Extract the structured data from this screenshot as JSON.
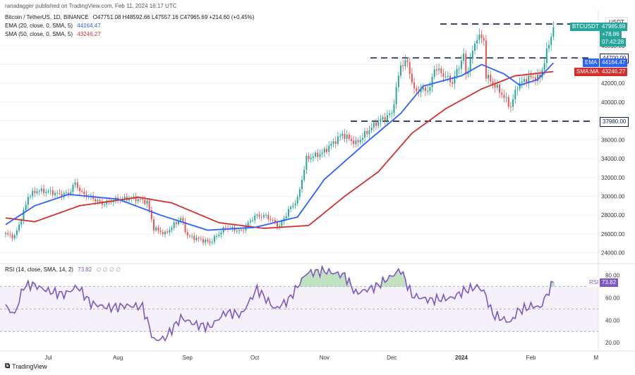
{
  "header": {
    "publisher_line": "ranadagger published on TradingView.com, Feb 11, 2024 16:17 UTC"
  },
  "legend": {
    "symbol": "Bitcoin / TetherUS, 1D, BINANCE",
    "ohlc": "O47751.08 H48592.66 L47557.16 C47965.69 +214.60 (+0.45%)",
    "ema_label": "EMA (20, close, 0, SMA, 5)",
    "ema_value": "44164.47",
    "sma_label": "SMA (50, close, 0, SMA, 5)",
    "sma_value": "43246.27"
  },
  "rsi_legend": {
    "label": "RSI (14, close, SMA, 14, 2)",
    "value": "73.82",
    "extra": "∅ ∅ ∅ ∅"
  },
  "currency": "USDT",
  "price_tags": {
    "symbol": "BTCUSDT",
    "price": "47965.69",
    "change": "+78.86",
    "timer": "07:42:28",
    "ema_tag": "EMA",
    "ema_value": "44164.47",
    "sma_tag": "SMA:MA",
    "sma_value": "43246.27",
    "rsi_tag": "RSI",
    "rsi_value": "73.82"
  },
  "levels": [
    {
      "label": "44700.00"
    },
    {
      "label": "37980.00"
    }
  ],
  "footer": {
    "brand": "TradingView"
  },
  "colors": {
    "up": "#26a69a",
    "down": "#ef5350",
    "ema": "#2962ff",
    "sma": "#d32f2f",
    "rsi": "#7e57c2",
    "level": "#0d1b4c"
  },
  "chart_data": [
    {
      "type": "candlestick",
      "title": "Bitcoin / TetherUS, 1D, BINANCE",
      "x_ticks": [
        "Jul",
        "Aug",
        "Sep",
        "Oct",
        "Nov",
        "Dec",
        "2024",
        "Feb",
        "M"
      ],
      "y_ticks": [
        "24000.00",
        "26000.00",
        "28000.00",
        "30000.00",
        "32000.00",
        "34000.00",
        "36000.00",
        "38000.00",
        "40000.00",
        "42000.00",
        "44000.00",
        "46000.00"
      ],
      "ylim": [
        23000,
        49500
      ],
      "horizontal_levels": [
        44700,
        37980,
        48300
      ],
      "price_anchors": [
        [
          "2023-06-12",
          26000
        ],
        [
          "2023-06-16",
          25700
        ],
        [
          "2023-06-20",
          28300
        ],
        [
          "2023-06-22",
          30000
        ],
        [
          "2023-06-26",
          30600
        ],
        [
          "2023-07-01",
          30500
        ],
        [
          "2023-07-06",
          30200
        ],
        [
          "2023-07-10",
          30300
        ],
        [
          "2023-07-13",
          31400
        ],
        [
          "2023-07-16",
          30300
        ],
        [
          "2023-07-20",
          29900
        ],
        [
          "2023-07-25",
          29200
        ],
        [
          "2023-08-01",
          29700
        ],
        [
          "2023-08-08",
          29800
        ],
        [
          "2023-08-14",
          29400
        ],
        [
          "2023-08-17",
          26600
        ],
        [
          "2023-08-22",
          26000
        ],
        [
          "2023-08-29",
          27700
        ],
        [
          "2023-09-01",
          25800
        ],
        [
          "2023-09-11",
          25100
        ],
        [
          "2023-09-18",
          26700
        ],
        [
          "2023-09-25",
          26300
        ],
        [
          "2023-10-01",
          27900
        ],
        [
          "2023-10-06",
          27900
        ],
        [
          "2023-10-12",
          26800
        ],
        [
          "2023-10-16",
          28500
        ],
        [
          "2023-10-20",
          29700
        ],
        [
          "2023-10-24",
          34000
        ],
        [
          "2023-10-31",
          34600
        ],
        [
          "2023-11-09",
          36600
        ],
        [
          "2023-11-15",
          35600
        ],
        [
          "2023-11-24",
          37800
        ],
        [
          "2023-12-01",
          38800
        ],
        [
          "2023-12-05",
          44000
        ],
        [
          "2023-12-08",
          44200
        ],
        [
          "2023-12-11",
          41200
        ],
        [
          "2023-12-18",
          41400
        ],
        [
          "2023-12-20",
          43700
        ],
        [
          "2023-12-28",
          42100
        ],
        [
          "2024-01-02",
          45000
        ],
        [
          "2024-01-03",
          42800
        ],
        [
          "2024-01-08",
          47000
        ],
        [
          "2024-01-11",
          46600
        ],
        [
          "2024-01-12",
          42800
        ],
        [
          "2024-01-18",
          41200
        ],
        [
          "2024-01-23",
          39500
        ],
        [
          "2024-01-26",
          41800
        ],
        [
          "2024-01-31",
          42600
        ],
        [
          "2024-02-05",
          42600
        ],
        [
          "2024-02-08",
          45300
        ],
        [
          "2024-02-11",
          47965
        ]
      ],
      "ema20_anchors": [
        [
          "2023-06-12",
          27000
        ],
        [
          "2023-06-25",
          29000
        ],
        [
          "2023-07-10",
          30200
        ],
        [
          "2023-08-01",
          29700
        ],
        [
          "2023-08-20",
          28000
        ],
        [
          "2023-09-10",
          26400
        ],
        [
          "2023-10-01",
          26700
        ],
        [
          "2023-10-20",
          27800
        ],
        [
          "2023-11-01",
          31800
        ],
        [
          "2023-11-20",
          35800
        ],
        [
          "2023-12-05",
          38800
        ],
        [
          "2023-12-15",
          41700
        ],
        [
          "2024-01-01",
          42800
        ],
        [
          "2024-01-10",
          44000
        ],
        [
          "2024-01-20",
          43000
        ],
        [
          "2024-01-27",
          41800
        ],
        [
          "2024-02-04",
          42400
        ],
        [
          "2024-02-11",
          44164
        ]
      ],
      "sma50_anchors": [
        [
          "2023-06-12",
          27700
        ],
        [
          "2023-06-25",
          27300
        ],
        [
          "2023-07-15",
          29000
        ],
        [
          "2023-08-10",
          29900
        ],
        [
          "2023-08-25",
          29300
        ],
        [
          "2023-09-15",
          27200
        ],
        [
          "2023-10-05",
          26600
        ],
        [
          "2023-10-25",
          26900
        ],
        [
          "2023-11-10",
          30000
        ],
        [
          "2023-11-25",
          32600
        ],
        [
          "2023-12-10",
          36700
        ],
        [
          "2023-12-25",
          39300
        ],
        [
          "2024-01-10",
          41400
        ],
        [
          "2024-01-25",
          42800
        ],
        [
          "2024-02-11",
          43246
        ]
      ]
    },
    {
      "type": "line",
      "title": "RSI (14, close, SMA, 14, 2)",
      "y_ticks": [
        "20.00",
        "40.00",
        "60.00",
        "80.00"
      ],
      "ylim": [
        15,
        88
      ],
      "bands": [
        30,
        50,
        70
      ],
      "rsi_anchors": [
        [
          "2023-06-12",
          52
        ],
        [
          "2023-06-16",
          45
        ],
        [
          "2023-06-20",
          70
        ],
        [
          "2023-06-24",
          72
        ],
        [
          "2023-07-01",
          66
        ],
        [
          "2023-07-08",
          63
        ],
        [
          "2023-07-14",
          70
        ],
        [
          "2023-07-20",
          55
        ],
        [
          "2023-07-28",
          51
        ],
        [
          "2023-08-05",
          53
        ],
        [
          "2023-08-12",
          52
        ],
        [
          "2023-08-17",
          22
        ],
        [
          "2023-08-22",
          24
        ],
        [
          "2023-08-29",
          42
        ],
        [
          "2023-09-05",
          36
        ],
        [
          "2023-09-11",
          34
        ],
        [
          "2023-09-18",
          47
        ],
        [
          "2023-09-25",
          45
        ],
        [
          "2023-10-02",
          68
        ],
        [
          "2023-10-10",
          50
        ],
        [
          "2023-10-16",
          58
        ],
        [
          "2023-10-24",
          82
        ],
        [
          "2023-11-01",
          84
        ],
        [
          "2023-11-10",
          80
        ],
        [
          "2023-11-15",
          64
        ],
        [
          "2023-11-24",
          70
        ],
        [
          "2023-12-05",
          85
        ],
        [
          "2023-12-10",
          62
        ],
        [
          "2023-12-18",
          58
        ],
        [
          "2023-12-28",
          60
        ],
        [
          "2024-01-02",
          66
        ],
        [
          "2024-01-08",
          70
        ],
        [
          "2024-01-11",
          66
        ],
        [
          "2024-01-15",
          45
        ],
        [
          "2024-01-23",
          38
        ],
        [
          "2024-01-26",
          48
        ],
        [
          "2024-02-02",
          53
        ],
        [
          "2024-02-05",
          51
        ],
        [
          "2024-02-11",
          73.82
        ]
      ]
    }
  ]
}
